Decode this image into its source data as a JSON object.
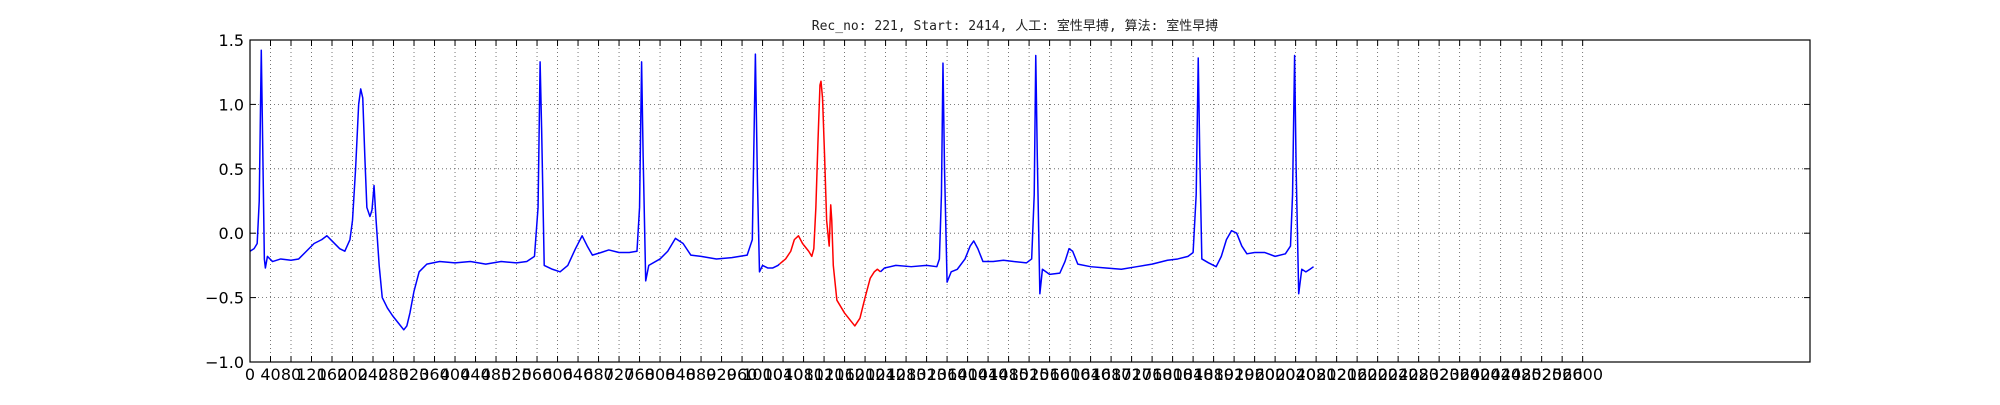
{
  "chart_data": {
    "type": "line",
    "title": "Rec_no: 221, Start: 2414, 人工: 室性早搏, 算法: 室性早搏",
    "xlabel": "",
    "ylabel": "",
    "xlim": [
      0,
      3000
    ],
    "ylim": [
      -1.0,
      1.5
    ],
    "grid": true,
    "grid_style": "dotted",
    "yticks": [
      {
        "value": -1.0,
        "label": "−1.0"
      },
      {
        "value": -0.5,
        "label": "−0.5"
      },
      {
        "value": 0.0,
        "label": "0.0"
      },
      {
        "value": 0.5,
        "label": "0.5"
      },
      {
        "value": 1.0,
        "label": "1.0"
      },
      {
        "value": 1.5,
        "label": "1.5"
      }
    ],
    "xticks": [
      {
        "value": 0,
        "label": "0"
      },
      {
        "value": 40,
        "label": "40"
      },
      {
        "value": 80,
        "label": "80"
      },
      {
        "value": 120,
        "label": "120"
      },
      {
        "value": 160,
        "label": "160"
      },
      {
        "value": 200,
        "label": "200"
      },
      {
        "value": 240,
        "label": "240"
      },
      {
        "value": 280,
        "label": "280"
      },
      {
        "value": 320,
        "label": "320"
      },
      {
        "value": 360,
        "label": "360"
      },
      {
        "value": 400,
        "label": "400"
      },
      {
        "value": 440,
        "label": "440"
      },
      {
        "value": 480,
        "label": "480"
      },
      {
        "value": 520,
        "label": "520"
      },
      {
        "value": 560,
        "label": "560"
      },
      {
        "value": 600,
        "label": "600"
      },
      {
        "value": 640,
        "label": "640"
      },
      {
        "value": 680,
        "label": "680"
      },
      {
        "value": 720,
        "label": "720"
      },
      {
        "value": 760,
        "label": "760"
      },
      {
        "value": 800,
        "label": "800"
      },
      {
        "value": 840,
        "label": "840"
      },
      {
        "value": 880,
        "label": "880"
      },
      {
        "value": 920,
        "label": "920"
      },
      {
        "value": 960,
        "label": "960"
      },
      {
        "value": 1000,
        "label": "1000"
      },
      {
        "value": 1040,
        "label": "1040"
      },
      {
        "value": 1080,
        "label": "1080"
      },
      {
        "value": 1120,
        "label": "1120"
      },
      {
        "value": 1160,
        "label": "1160"
      },
      {
        "value": 1200,
        "label": "1200"
      },
      {
        "value": 1240,
        "label": "1240"
      },
      {
        "value": 1280,
        "label": "1280"
      },
      {
        "value": 1320,
        "label": "1320"
      },
      {
        "value": 1360,
        "label": "1360"
      },
      {
        "value": 1400,
        "label": "1400"
      },
      {
        "value": 1440,
        "label": "1440"
      },
      {
        "value": 1480,
        "label": "1480"
      },
      {
        "value": 1520,
        "label": "1520"
      },
      {
        "value": 1560,
        "label": "1560"
      },
      {
        "value": 1600,
        "label": "1600"
      },
      {
        "value": 1640,
        "label": "1640"
      },
      {
        "value": 1680,
        "label": "1680"
      },
      {
        "value": 1720,
        "label": "1720"
      },
      {
        "value": 1760,
        "label": "1760"
      },
      {
        "value": 1800,
        "label": "1800"
      },
      {
        "value": 1840,
        "label": "1840"
      },
      {
        "value": 1880,
        "label": "1880"
      },
      {
        "value": 1920,
        "label": "1920"
      },
      {
        "value": 1960,
        "label": "1960"
      },
      {
        "value": 2000,
        "label": "2000"
      },
      {
        "value": 2040,
        "label": "2040"
      },
      {
        "value": 2080,
        "label": "2080"
      },
      {
        "value": 2120,
        "label": "2120"
      },
      {
        "value": 2160,
        "label": "2160"
      },
      {
        "value": 2200,
        "label": "2200"
      },
      {
        "value": 2240,
        "label": "2240"
      },
      {
        "value": 2280,
        "label": "2280"
      },
      {
        "value": 2320,
        "label": "2320"
      },
      {
        "value": 2360,
        "label": "2360"
      },
      {
        "value": 2400,
        "label": "2400"
      },
      {
        "value": 2440,
        "label": "2440"
      },
      {
        "value": 2480,
        "label": "2480"
      },
      {
        "value": 2520,
        "label": "2520"
      },
      {
        "value": 2560,
        "label": "2560"
      },
      {
        "value": 2600,
        "label": "2600"
      }
    ],
    "series": [
      {
        "color": "#0000ff",
        "points": [
          [
            0,
            -0.14
          ],
          [
            8,
            -0.12
          ],
          [
            14,
            -0.08
          ],
          [
            18,
            0.25
          ],
          [
            22,
            1.42
          ],
          [
            24,
            0.9
          ],
          [
            28,
            -0.2
          ],
          [
            30,
            -0.27
          ],
          [
            34,
            -0.18
          ],
          [
            44,
            -0.22
          ],
          [
            60,
            -0.2
          ],
          [
            80,
            -0.21
          ],
          [
            95,
            -0.2
          ],
          [
            110,
            -0.14
          ],
          [
            125,
            -0.08
          ],
          [
            140,
            -0.05
          ],
          [
            150,
            -0.02
          ],
          [
            160,
            -0.06
          ],
          [
            175,
            -0.12
          ],
          [
            185,
            -0.14
          ],
          [
            195,
            -0.05
          ],
          [
            200,
            0.1
          ],
          [
            206,
            0.5
          ],
          [
            212,
            1.0
          ],
          [
            216,
            1.12
          ],
          [
            220,
            1.05
          ],
          [
            224,
            0.6
          ],
          [
            228,
            0.2
          ],
          [
            234,
            0.13
          ],
          [
            238,
            0.18
          ],
          [
            242,
            0.37
          ],
          [
            246,
            0.1
          ],
          [
            252,
            -0.25
          ],
          [
            258,
            -0.5
          ],
          [
            268,
            -0.58
          ],
          [
            278,
            -0.64
          ],
          [
            290,
            -0.7
          ],
          [
            300,
            -0.75
          ],
          [
            306,
            -0.72
          ],
          [
            312,
            -0.62
          ],
          [
            320,
            -0.45
          ],
          [
            330,
            -0.3
          ],
          [
            345,
            -0.24
          ],
          [
            370,
            -0.22
          ],
          [
            400,
            -0.23
          ],
          [
            430,
            -0.22
          ],
          [
            460,
            -0.24
          ],
          [
            490,
            -0.22
          ],
          [
            520,
            -0.23
          ],
          [
            540,
            -0.22
          ],
          [
            555,
            -0.18
          ],
          [
            562,
            0.2
          ],
          [
            566,
            1.33
          ],
          [
            569,
            0.8
          ],
          [
            574,
            -0.25
          ],
          [
            590,
            -0.28
          ],
          [
            605,
            -0.3
          ],
          [
            620,
            -0.25
          ],
          [
            635,
            -0.12
          ],
          [
            648,
            -0.02
          ],
          [
            658,
            -0.1
          ],
          [
            668,
            -0.17
          ],
          [
            685,
            -0.15
          ],
          [
            700,
            -0.13
          ],
          [
            720,
            -0.15
          ],
          [
            740,
            -0.15
          ],
          [
            755,
            -0.14
          ],
          [
            760,
            0.2
          ],
          [
            764,
            1.33
          ],
          [
            767,
            0.6
          ],
          [
            772,
            -0.37
          ],
          [
            778,
            -0.25
          ],
          [
            800,
            -0.2
          ],
          [
            815,
            -0.14
          ],
          [
            830,
            -0.04
          ],
          [
            845,
            -0.08
          ],
          [
            860,
            -0.17
          ],
          [
            880,
            -0.18
          ],
          [
            910,
            -0.2
          ],
          [
            940,
            -0.19
          ],
          [
            970,
            -0.17
          ],
          [
            980,
            -0.05
          ],
          [
            986,
            1.39
          ],
          [
            990,
            0.4
          ],
          [
            994,
            -0.3
          ],
          [
            1000,
            -0.25
          ],
          [
            1010,
            -0.27
          ],
          [
            1020,
            -0.27
          ],
          [
            1030,
            -0.25
          ],
          [
            1033,
            -0.24
          ]
        ]
      },
      {
        "color": "#ff0000",
        "points": [
          [
            1033,
            -0.24
          ],
          [
            1045,
            -0.2
          ],
          [
            1055,
            -0.14
          ],
          [
            1062,
            -0.05
          ],
          [
            1070,
            -0.02
          ],
          [
            1078,
            -0.08
          ],
          [
            1090,
            -0.14
          ],
          [
            1096,
            -0.18
          ],
          [
            1100,
            -0.12
          ],
          [
            1104,
            0.2
          ],
          [
            1108,
            0.7
          ],
          [
            1112,
            1.15
          ],
          [
            1114,
            1.18
          ],
          [
            1117,
            1.05
          ],
          [
            1121,
            0.6
          ],
          [
            1125,
            0.1
          ],
          [
            1130,
            -0.1
          ],
          [
            1133,
            0.22
          ],
          [
            1135,
            0.1
          ],
          [
            1138,
            -0.25
          ],
          [
            1145,
            -0.52
          ],
          [
            1160,
            -0.62
          ],
          [
            1172,
            -0.68
          ],
          [
            1180,
            -0.72
          ],
          [
            1190,
            -0.66
          ],
          [
            1200,
            -0.5
          ],
          [
            1210,
            -0.35
          ],
          [
            1218,
            -0.3
          ],
          [
            1224,
            -0.28
          ],
          [
            1230,
            -0.3
          ]
        ]
      },
      {
        "color": "#0000ff",
        "points": [
          [
            1230,
            -0.3
          ],
          [
            1238,
            -0.27
          ],
          [
            1260,
            -0.25
          ],
          [
            1290,
            -0.26
          ],
          [
            1320,
            -0.25
          ],
          [
            1340,
            -0.26
          ],
          [
            1345,
            -0.2
          ],
          [
            1349,
            0.3
          ],
          [
            1352,
            1.32
          ],
          [
            1355,
            0.5
          ],
          [
            1360,
            -0.38
          ],
          [
            1368,
            -0.3
          ],
          [
            1380,
            -0.28
          ],
          [
            1395,
            -0.2
          ],
          [
            1405,
            -0.1
          ],
          [
            1412,
            -0.06
          ],
          [
            1420,
            -0.12
          ],
          [
            1430,
            -0.22
          ],
          [
            1450,
            -0.22
          ],
          [
            1470,
            -0.21
          ],
          [
            1490,
            -0.22
          ],
          [
            1515,
            -0.23
          ],
          [
            1525,
            -0.2
          ],
          [
            1530,
            0.3
          ],
          [
            1533,
            1.38
          ],
          [
            1536,
            0.6
          ],
          [
            1541,
            -0.47
          ],
          [
            1546,
            -0.28
          ],
          [
            1560,
            -0.32
          ],
          [
            1580,
            -0.31
          ],
          [
            1590,
            -0.22
          ],
          [
            1598,
            -0.12
          ],
          [
            1605,
            -0.14
          ],
          [
            1615,
            -0.24
          ],
          [
            1640,
            -0.26
          ],
          [
            1670,
            -0.27
          ],
          [
            1700,
            -0.28
          ],
          [
            1730,
            -0.26
          ],
          [
            1760,
            -0.24
          ],
          [
            1790,
            -0.21
          ],
          [
            1810,
            -0.2
          ],
          [
            1830,
            -0.18
          ],
          [
            1840,
            -0.15
          ],
          [
            1846,
            0.3
          ],
          [
            1850,
            1.36
          ],
          [
            1853,
            0.6
          ],
          [
            1857,
            -0.2
          ],
          [
            1870,
            -0.23
          ],
          [
            1885,
            -0.26
          ],
          [
            1895,
            -0.18
          ],
          [
            1905,
            -0.05
          ],
          [
            1915,
            0.02
          ],
          [
            1925,
            0.0
          ],
          [
            1935,
            -0.1
          ],
          [
            1945,
            -0.16
          ],
          [
            1960,
            -0.15
          ],
          [
            1980,
            -0.15
          ],
          [
            2000,
            -0.18
          ],
          [
            2020,
            -0.16
          ],
          [
            2030,
            -0.1
          ],
          [
            2034,
            0.3
          ],
          [
            2038,
            1.38
          ],
          [
            2041,
            0.5
          ],
          [
            2046,
            -0.47
          ],
          [
            2052,
            -0.28
          ],
          [
            2060,
            -0.3
          ],
          [
            2068,
            -0.28
          ],
          [
            2075,
            -0.26
          ]
        ]
      }
    ]
  }
}
